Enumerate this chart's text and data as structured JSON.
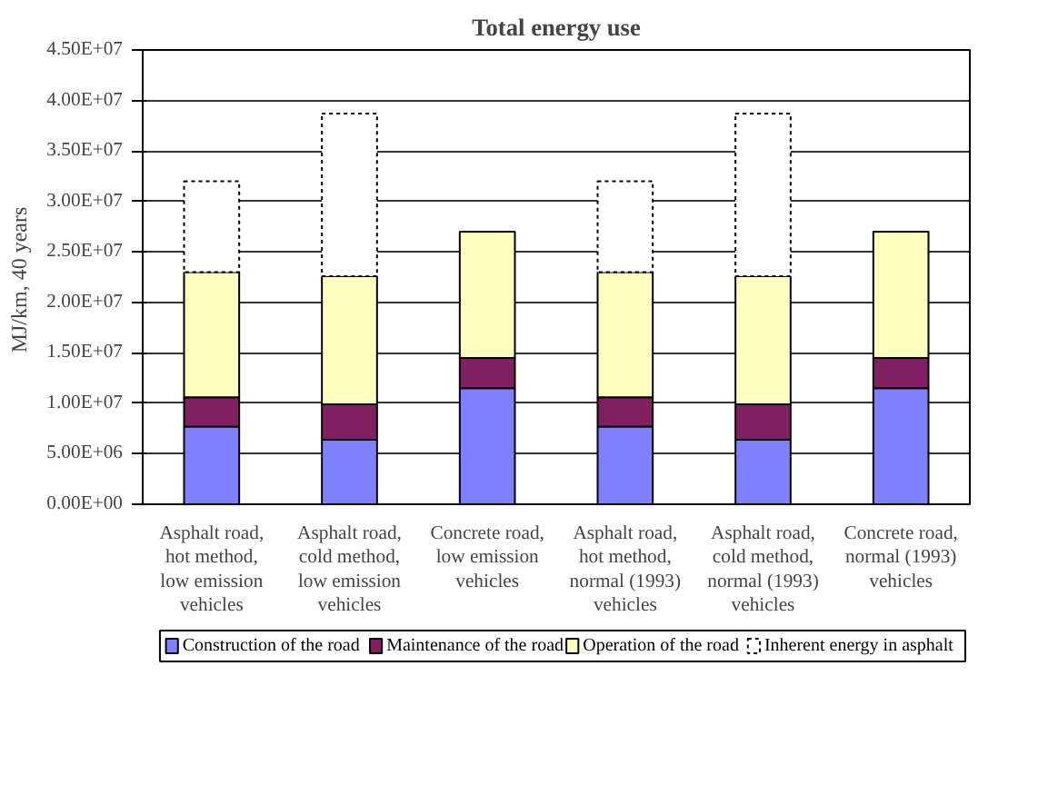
{
  "chart_data": {
    "type": "bar",
    "title": "Total energy use",
    "ylabel": "MJ/km,  40 years",
    "stacked": true,
    "categories": [
      "Asphalt road, hot method, low emission vehicles",
      "Asphalt road, cold method, low emission vehicles",
      "Concrete road, low emission vehicles",
      "Asphalt road, hot method, normal (1993) vehicles",
      "Asphalt road, cold method, normal (1993) vehicles",
      "Concrete road, normal (1993) vehicles"
    ],
    "series": [
      {
        "name": "Construction of the road",
        "color": "#8080ff",
        "values": [
          7700000,
          6400000,
          11500000,
          7700000,
          6400000,
          11500000
        ]
      },
      {
        "name": "Maintenance of the road",
        "color": "#802060",
        "values": [
          2900000,
          3500000,
          3000000,
          2900000,
          3500000,
          3000000
        ]
      },
      {
        "name": "Operation of the road",
        "color": "#ffffc0",
        "values": [
          12400000,
          12700000,
          12500000,
          12400000,
          12700000,
          12500000
        ]
      },
      {
        "name": "Inherent energy in asphalt",
        "color": "#ffffff",
        "line_style": "dotted",
        "values": [
          9000000,
          16100000,
          null,
          9000000,
          16100000,
          null
        ]
      }
    ],
    "ylim": [
      0,
      45000000
    ],
    "yticks": [
      {
        "value": 0,
        "label": "0.00E+00"
      },
      {
        "value": 5000000,
        "label": "5.00E+06"
      },
      {
        "value": 10000000,
        "label": "1.00E+07"
      },
      {
        "value": 15000000,
        "label": "1.50E+07"
      },
      {
        "value": 20000000,
        "label": "2.00E+07"
      },
      {
        "value": 25000000,
        "label": "2.50E+07"
      },
      {
        "value": 30000000,
        "label": "3.00E+07"
      },
      {
        "value": 35000000,
        "label": "3.50E+07"
      },
      {
        "value": 40000000,
        "label": "4.00E+07"
      },
      {
        "value": 45000000,
        "label": "4.50E+07"
      }
    ],
    "grid": "y",
    "legend": "bottom"
  }
}
